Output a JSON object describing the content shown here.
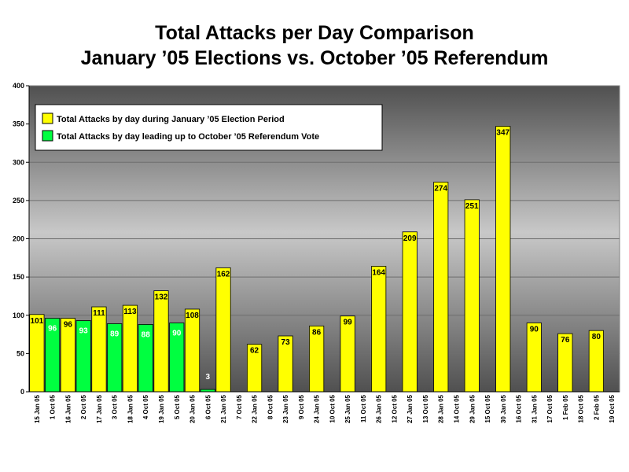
{
  "title": "Total Attacks per Day Comparison",
  "subtitle": "January ’05 Elections vs. October ’05 Referendum",
  "colors": {
    "election": "#ffff00",
    "referendum": "#00ff40",
    "plot_top": "#505050",
    "plot_mid": "#c8c8c8",
    "plot_bottom": "#505050"
  },
  "chart_data": {
    "type": "bar",
    "title": "Total Attacks per Day Comparison",
    "subtitle": "January ’05 Elections vs. October ’05 Referendum",
    "xlabel": "",
    "ylabel": "",
    "ylim": [
      0,
      400
    ],
    "yticks": [
      0,
      50,
      100,
      150,
      200,
      250,
      300,
      350,
      400
    ],
    "grid": true,
    "legend_position": "top-left",
    "series": [
      {
        "name": "Total Attacks by day during January ’05 Election Period",
        "color_key": "election"
      },
      {
        "name": "Total Attacks by day leading up to October ’05 Referendum Vote",
        "color_key": "referendum"
      }
    ],
    "categories": [
      "15 Jan 05",
      "1 Oct 05",
      "16 Jan 05",
      "2 Oct 05",
      "17 Jan 05",
      "3 Oct 05",
      "18 Jan 05",
      "4 Oct 05",
      "19 Jan 05",
      "5 Oct 05",
      "20 Jan 05",
      "6 Oct 05",
      "21 Jan 05",
      "7 Oct 05",
      "22 Jan 05",
      "8 Oct 05",
      "23 Jan 05",
      "9 Oct 05",
      "24 Jan 05",
      "10 Oct 05",
      "25 Jan 05",
      "11 Oct 05",
      "26 Jan 05",
      "12 Oct 05",
      "27 Jan 05",
      "13 Oct 05",
      "28 Jan 05",
      "14 Oct 05",
      "29 Jan 05",
      "15 Oct 05",
      "30 Jan 05",
      "16 Oct 05",
      "31 Jan 05",
      "17 Oct 05",
      "1 Feb 05",
      "18 Oct 05",
      "2 Feb 05",
      "19 Oct 05"
    ],
    "bars": [
      {
        "series": 0,
        "value": 101
      },
      {
        "series": 1,
        "value": 96
      },
      {
        "series": 0,
        "value": 96
      },
      {
        "series": 1,
        "value": 93
      },
      {
        "series": 0,
        "value": 111
      },
      {
        "series": 1,
        "value": 89
      },
      {
        "series": 0,
        "value": 113
      },
      {
        "series": 1,
        "value": 88
      },
      {
        "series": 0,
        "value": 132
      },
      {
        "series": 1,
        "value": 90
      },
      {
        "series": 0,
        "value": 108
      },
      {
        "series": 1,
        "value": 3
      },
      {
        "series": 0,
        "value": 162
      },
      {
        "series": 1,
        "value": null
      },
      {
        "series": 0,
        "value": 62
      },
      {
        "series": 1,
        "value": null
      },
      {
        "series": 0,
        "value": 73
      },
      {
        "series": 1,
        "value": null
      },
      {
        "series": 0,
        "value": 86
      },
      {
        "series": 1,
        "value": null
      },
      {
        "series": 0,
        "value": 99
      },
      {
        "series": 1,
        "value": null
      },
      {
        "series": 0,
        "value": 164
      },
      {
        "series": 1,
        "value": null
      },
      {
        "series": 0,
        "value": 209
      },
      {
        "series": 1,
        "value": null
      },
      {
        "series": 0,
        "value": 274
      },
      {
        "series": 1,
        "value": null
      },
      {
        "series": 0,
        "value": 251
      },
      {
        "series": 1,
        "value": null
      },
      {
        "series": 0,
        "value": 347
      },
      {
        "series": 1,
        "value": null
      },
      {
        "series": 0,
        "value": 90
      },
      {
        "series": 1,
        "value": null
      },
      {
        "series": 0,
        "value": 76
      },
      {
        "series": 1,
        "value": null
      },
      {
        "series": 0,
        "value": 80
      },
      {
        "series": 1,
        "value": null
      }
    ]
  }
}
